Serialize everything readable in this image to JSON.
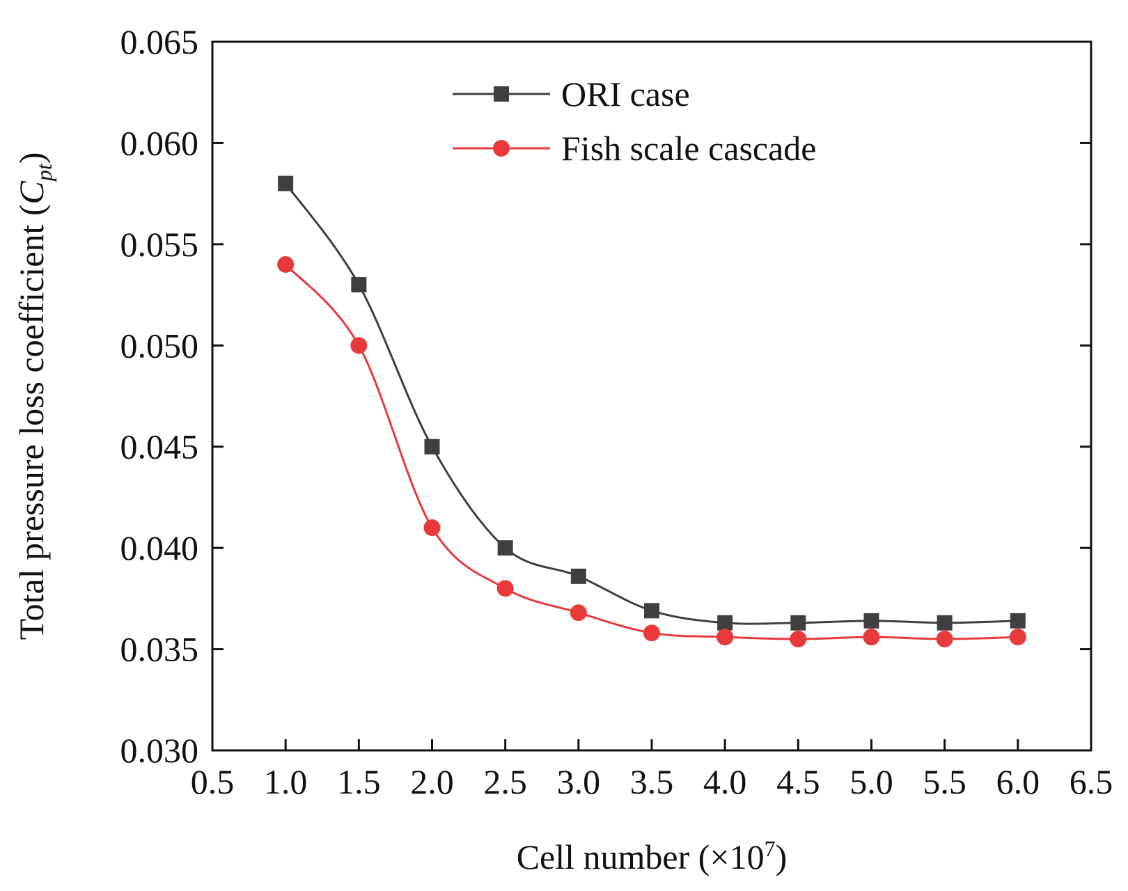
{
  "chart_data": {
    "type": "line",
    "x": [
      1.0,
      1.5,
      2.0,
      2.5,
      3.0,
      3.5,
      4.0,
      4.5,
      5.0,
      5.5,
      6.0
    ],
    "series": [
      {
        "name": "ORI case",
        "values": [
          0.058,
          0.053,
          0.045,
          0.04,
          0.0386,
          0.0369,
          0.0363,
          0.0363,
          0.0364,
          0.0363,
          0.0364
        ],
        "color": "#3f3f3f",
        "marker": "square"
      },
      {
        "name": "Fish scale cascade",
        "values": [
          0.054,
          0.05,
          0.041,
          0.038,
          0.0368,
          0.0358,
          0.0356,
          0.0355,
          0.0356,
          0.0355,
          0.0356
        ],
        "color": "#e8393b",
        "marker": "circle"
      }
    ],
    "xlim": [
      0.5,
      6.5
    ],
    "ylim": [
      0.03,
      0.065
    ],
    "xticks": [
      "0.5",
      "1.0",
      "1.5",
      "2.0",
      "2.5",
      "3.0",
      "3.5",
      "4.0",
      "4.5",
      "5.0",
      "5.5",
      "6.0",
      "6.5"
    ],
    "yticks": [
      "0.030",
      "0.035",
      "0.040",
      "0.045",
      "0.050",
      "0.055",
      "0.060",
      "0.065"
    ],
    "xlabel": {
      "main": "Cell number (×10",
      "superscript": "7",
      "close": ")"
    },
    "ylabel": {
      "main": "Total pressure loss coefficient (",
      "symbol": "C",
      "subscript": "pt",
      "close": ")"
    },
    "legend": "top-center",
    "grid": false
  }
}
